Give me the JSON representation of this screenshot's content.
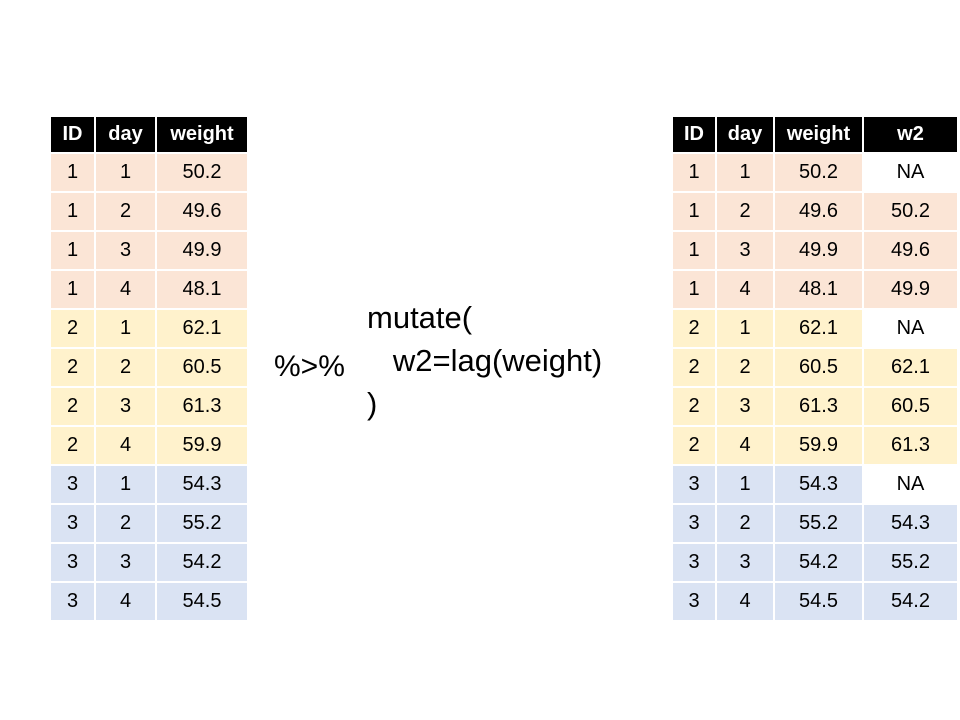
{
  "colors": {
    "header": "#000000",
    "group1": "#FBE5D6",
    "group2": "#FFF2CC",
    "group3": "#DAE3F3",
    "na_cell": "#FFFFFF"
  },
  "left_table": {
    "headers": [
      "ID",
      "day",
      "weight"
    ],
    "rows": [
      [
        "1",
        "1",
        "50.2"
      ],
      [
        "1",
        "2",
        "49.6"
      ],
      [
        "1",
        "3",
        "49.9"
      ],
      [
        "1",
        "4",
        "48.1"
      ],
      [
        "2",
        "1",
        "62.1"
      ],
      [
        "2",
        "2",
        "60.5"
      ],
      [
        "2",
        "3",
        "61.3"
      ],
      [
        "2",
        "4",
        "59.9"
      ],
      [
        "3",
        "1",
        "54.3"
      ],
      [
        "3",
        "2",
        "55.2"
      ],
      [
        "3",
        "3",
        "54.2"
      ],
      [
        "3",
        "4",
        "54.5"
      ]
    ]
  },
  "pipe_operator": "%>%",
  "code": {
    "line1": "mutate(",
    "line2": "   w2=lag(weight)",
    "line3": ")"
  },
  "right_table": {
    "headers": [
      "ID",
      "day",
      "weight",
      "w2"
    ],
    "rows": [
      [
        "1",
        "1",
        "50.2",
        "NA"
      ],
      [
        "1",
        "2",
        "49.6",
        "50.2"
      ],
      [
        "1",
        "3",
        "49.9",
        "49.6"
      ],
      [
        "1",
        "4",
        "48.1",
        "49.9"
      ],
      [
        "2",
        "1",
        "62.1",
        "NA"
      ],
      [
        "2",
        "2",
        "60.5",
        "62.1"
      ],
      [
        "2",
        "3",
        "61.3",
        "60.5"
      ],
      [
        "2",
        "4",
        "59.9",
        "61.3"
      ],
      [
        "3",
        "1",
        "54.3",
        "NA"
      ],
      [
        "3",
        "2",
        "55.2",
        "54.3"
      ],
      [
        "3",
        "3",
        "54.2",
        "55.2"
      ],
      [
        "3",
        "4",
        "54.5",
        "54.2"
      ]
    ]
  }
}
